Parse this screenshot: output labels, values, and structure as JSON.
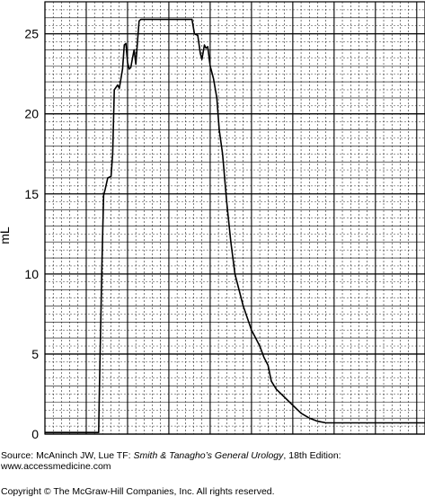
{
  "chart_data": {
    "type": "line",
    "ylabel": "mL",
    "xlabel": "",
    "title": "",
    "ylim": [
      0,
      27
    ],
    "xlim": [
      0,
      46
    ],
    "y_ticks": [
      0,
      5,
      10,
      15,
      20,
      25
    ],
    "y_tick_labels": [
      "0",
      "5",
      "10",
      "15",
      "20",
      "25"
    ],
    "grid": true,
    "series": [
      {
        "x": [
          0,
          6.5,
          6.6,
          6.9,
          7.1,
          7.3,
          7.6,
          8.0,
          8.2,
          8.4,
          8.8,
          9.0,
          9.2,
          9.4,
          9.6,
          9.8,
          10.0,
          10.2,
          10.4,
          10.6,
          10.8,
          11.0,
          11.2,
          11.4,
          11.6,
          11.8,
          12.0,
          12.2,
          12.4,
          12.6,
          12.7,
          13.0,
          14.0,
          16.0,
          17.8,
          18.1,
          18.5,
          18.8,
          19.0,
          19.3,
          19.5,
          19.7,
          20.0,
          20.4,
          20.8,
          21.1,
          21.5,
          22.0,
          22.5,
          23.0,
          24.0,
          25.0,
          26.0,
          26.5,
          27.0,
          27.2,
          27.4,
          28.0,
          29.0,
          30.0,
          31.0,
          32.0,
          33.0,
          34.0,
          35.0,
          36.0,
          37.0,
          38.0,
          39.0,
          40.0,
          41.0,
          42.0,
          43.0,
          44.0,
          45.0,
          46.0
        ],
        "y": [
          0.1,
          0.1,
          3.0,
          10.5,
          14.9,
          15.3,
          16.0,
          16.1,
          17.5,
          21.5,
          21.8,
          21.6,
          22.2,
          22.8,
          24.3,
          24.4,
          23.2,
          22.8,
          22.9,
          23.5,
          24.0,
          23.1,
          24.5,
          25.8,
          25.9,
          25.9,
          25.9,
          25.9,
          25.9,
          25.9,
          25.9,
          25.9,
          25.9,
          25.9,
          25.9,
          25.0,
          24.9,
          23.8,
          23.4,
          24.3,
          24.1,
          24.2,
          23.0,
          22.2,
          21.0,
          19.0,
          17.5,
          14.5,
          12.0,
          10.0,
          8.0,
          6.5,
          5.5,
          4.8,
          4.3,
          3.8,
          3.3,
          2.8,
          2.3,
          1.8,
          1.3,
          1.0,
          0.8,
          0.7,
          0.7,
          0.7,
          0.7,
          0.7,
          0.7,
          0.7,
          0.7,
          0.7,
          0.7,
          0.7,
          0.7,
          0.7
        ]
      }
    ]
  },
  "source": {
    "prefix": "Source: McAninch JW, Lue TF: ",
    "book_title": "Smith & Tanagho’s General Urology",
    "suffix": ", 18th Edition:",
    "url": "www.accessmedicine.com"
  },
  "copyright": "Copyright © The McGraw-Hill Companies, Inc. All rights reserved."
}
